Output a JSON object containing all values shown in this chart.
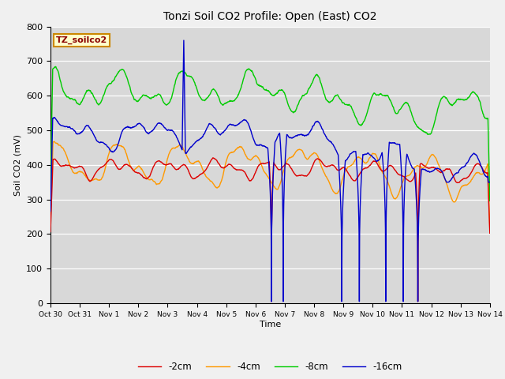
{
  "title": "Tonzi Soil CO2 Profile: Open (East) CO2",
  "xlabel": "Time",
  "ylabel": "Soil CO2 (mV)",
  "ylim": [
    0,
    800
  ],
  "legend_label": "TZ_soilco2",
  "series_labels": [
    "-2cm",
    "-4cm",
    "-8cm",
    "-16cm"
  ],
  "series_colors": [
    "#dd0000",
    "#ff9900",
    "#00cc00",
    "#0000cc"
  ],
  "plot_bg": "#d8d8d8",
  "fig_bg": "#f0f0f0",
  "xtick_labels": [
    "Oct 30",
    "Oct 31",
    "Nov 1",
    "Nov 2",
    "Nov 3",
    "Nov 4",
    "Nov 5",
    "Nov 6",
    "Nov 7",
    "Nov 8",
    "Nov 9",
    "Nov 10",
    "Nov 11",
    "Nov 12",
    "Nov 13",
    "Nov 14"
  ],
  "num_days": 16,
  "yticks": [
    0,
    100,
    200,
    300,
    400,
    500,
    600,
    700,
    800
  ]
}
